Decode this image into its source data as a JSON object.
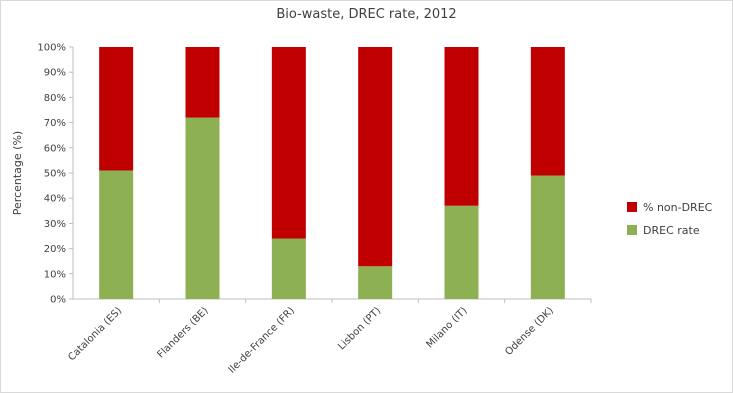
{
  "chart_data": {
    "type": "bar",
    "stacked": true,
    "percent": true,
    "title": "Bio-waste, DREC rate, 2012",
    "xlabel": "",
    "ylabel": "Percentage (%)",
    "ylim": [
      0,
      100
    ],
    "yticks": [
      "0%",
      "10%",
      "20%",
      "30%",
      "40%",
      "50%",
      "60%",
      "70%",
      "80%",
      "90%",
      "100%"
    ],
    "categories": [
      "Catalonia (ES)",
      "Flanders (BE)",
      "Ile-de-France (FR)",
      "Lisbon (PT)",
      "Milano (IT)",
      "Odense (DK)"
    ],
    "series": [
      {
        "name": "DREC rate",
        "color": "#8db053",
        "values": [
          51,
          72,
          24,
          13,
          37,
          49
        ]
      },
      {
        "name": "% non-DREC",
        "color": "#c00000",
        "values": [
          49,
          28,
          76,
          87,
          63,
          51
        ]
      }
    ],
    "legend_position": "right",
    "legend_order": [
      "% non-DREC",
      "DREC rate"
    ],
    "grid": false
  }
}
